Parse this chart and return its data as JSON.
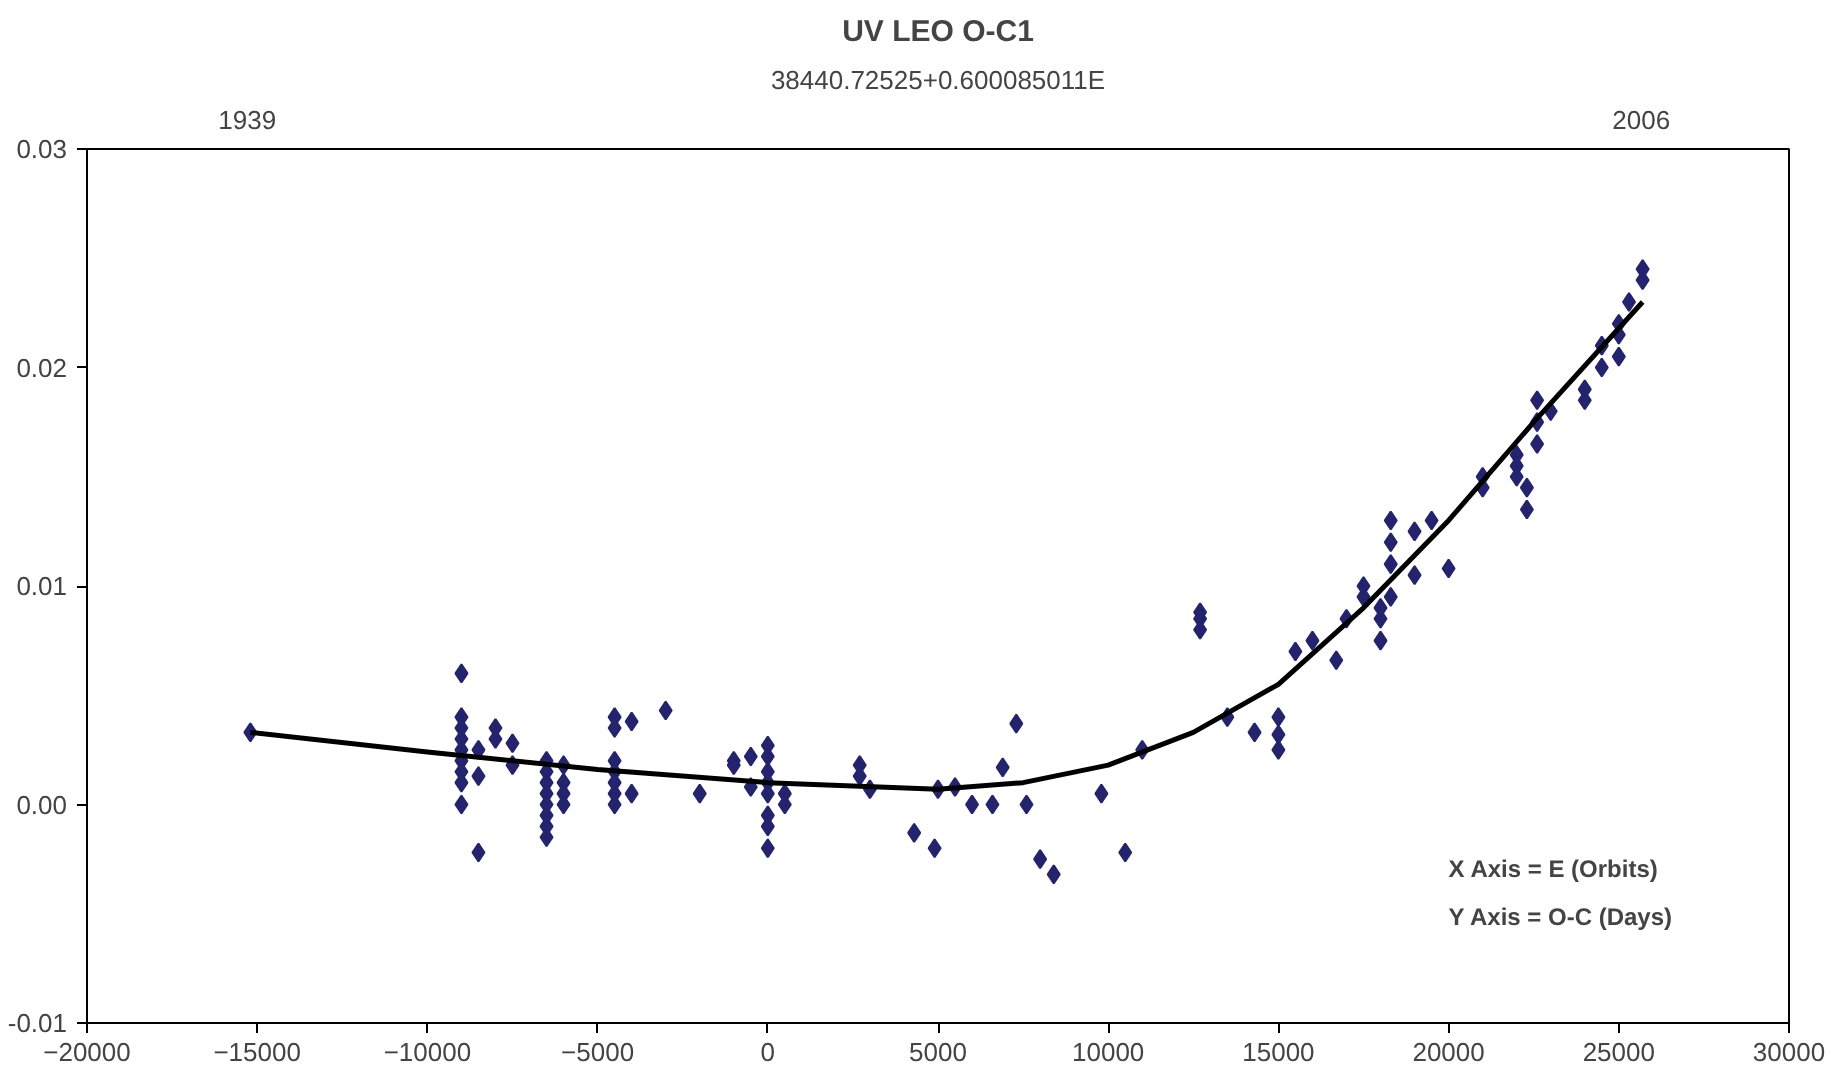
{
  "chart_data": {
    "type": "scatter",
    "title": "UV LEO O-C1",
    "x2label": "38440.72525+0.600085011E",
    "annotations": [
      "X Axis = E (Orbits)",
      "Y Axis = O-C (Days)"
    ],
    "xlim": [
      -20000,
      30000
    ],
    "xticks": [
      -20000,
      -15000,
      -10000,
      -5000,
      0,
      5000,
      10000,
      15000,
      20000,
      25000,
      30000
    ],
    "x2lim": [
      1931.3,
      2013.1
    ],
    "x2ticks": [
      1939,
      2006
    ],
    "ylim": [
      -0.01,
      0.03
    ],
    "yticks": [
      {
        "value": -0.01,
        "label": "-0.01"
      },
      {
        "value": 0,
        "label": "0.00"
      },
      {
        "value": 0.01,
        "label": "0.01"
      },
      {
        "value": 0.02,
        "label": "0.02"
      },
      {
        "value": 0.03,
        "label": "0.03"
      }
    ],
    "grid": false,
    "series": [
      {
        "marker": "diamond",
        "color": "#24246e",
        "x": [
          -15200,
          -9000,
          -9000,
          -9000,
          -9000,
          -9000,
          -9000,
          -9000,
          -9000,
          -9000,
          -8500,
          -8500,
          -8500,
          -8000,
          -8000,
          -7500,
          -7500,
          -6500,
          -6500,
          -6500,
          -6500,
          -6500,
          -6500,
          -6500,
          -6500,
          -6000,
          -6000,
          -6000,
          -6000,
          -4500,
          -4500,
          -4500,
          -4500,
          -4500,
          -4500,
          -4500,
          -4000,
          -4000,
          -3000,
          -2000,
          -1000,
          -1000,
          -500,
          -500,
          0,
          0,
          0,
          0,
          0,
          0,
          0,
          0,
          500,
          500,
          2700,
          2700,
          3000,
          4300,
          4900,
          5000,
          5500,
          6000,
          6600,
          6900,
          7300,
          7600,
          8000,
          8400,
          9800,
          10500,
          11000,
          12700,
          12700,
          12700,
          13500,
          14300,
          15000,
          15000,
          15000,
          15500,
          16000,
          16700,
          17000,
          17500,
          17500,
          18000,
          18000,
          18000,
          18300,
          18300,
          18300,
          18300,
          19000,
          19000,
          19500,
          20000,
          21000,
          21000,
          22000,
          22000,
          22000,
          22300,
          22300,
          22600,
          22600,
          22600,
          23000,
          24000,
          24000,
          24500,
          24500,
          25000,
          25000,
          25000,
          25300,
          25700,
          25700
        ],
        "values": [
          0.0033,
          0.006,
          0.004,
          0.0035,
          0.003,
          0.0025,
          0.002,
          0.0015,
          0.001,
          0.0,
          -0.0022,
          0.0013,
          0.0025,
          0.003,
          0.0035,
          0.0018,
          0.0028,
          0.002,
          0.0015,
          0.001,
          0.0005,
          0.0,
          -0.0005,
          -0.001,
          -0.0015,
          0.0018,
          0.001,
          0.0005,
          0.0,
          0.004,
          0.0035,
          0.002,
          0.0015,
          0.001,
          0.0005,
          0.0,
          0.0038,
          0.0005,
          0.0043,
          0.0005,
          0.002,
          0.0018,
          0.0022,
          0.0008,
          0.0027,
          0.0022,
          0.0015,
          0.001,
          0.0005,
          -0.0005,
          -0.001,
          -0.002,
          0.0,
          0.0005,
          0.0018,
          0.0013,
          0.0007,
          -0.0013,
          -0.002,
          0.0007,
          0.0008,
          0.0,
          0.0,
          0.0017,
          0.0037,
          0.0,
          -0.0025,
          -0.0032,
          0.0005,
          -0.0022,
          0.0025,
          0.0088,
          0.0085,
          0.008,
          0.004,
          0.0033,
          0.004,
          0.0032,
          0.0025,
          0.007,
          0.0075,
          0.0066,
          0.0085,
          0.0095,
          0.01,
          0.009,
          0.0085,
          0.0075,
          0.013,
          0.012,
          0.011,
          0.0095,
          0.0125,
          0.0105,
          0.013,
          0.0108,
          0.0145,
          0.015,
          0.016,
          0.015,
          0.0155,
          0.0145,
          0.0135,
          0.0185,
          0.0175,
          0.0165,
          0.018,
          0.019,
          0.0185,
          0.02,
          0.021,
          0.0215,
          0.022,
          0.0205,
          0.023,
          0.0245,
          0.024
        ]
      },
      {
        "type": "line",
        "color": "#000000",
        "line_style": "solid",
        "x": [
          -15200,
          -10000,
          -5000,
          0,
          5000,
          7500,
          10000,
          12500,
          15000,
          17500,
          20000,
          22500,
          25700
        ],
        "values": [
          0.0033,
          0.0024,
          0.0016,
          0.001,
          0.0007,
          0.001,
          0.0018,
          0.0033,
          0.0055,
          0.009,
          0.013,
          0.0175,
          0.023
        ]
      }
    ]
  }
}
